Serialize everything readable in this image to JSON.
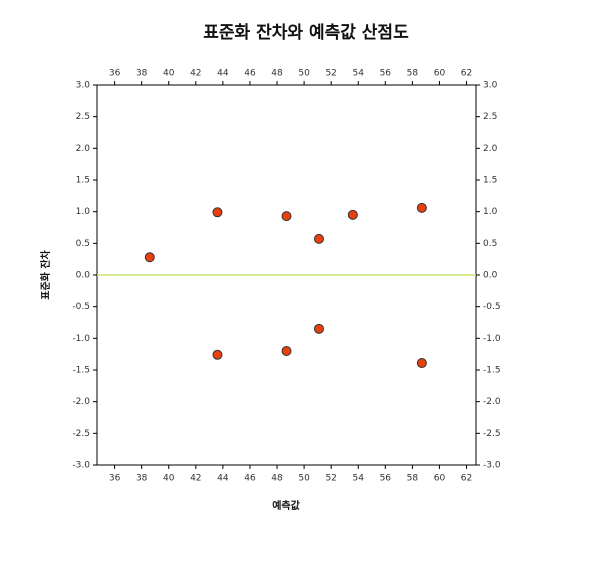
{
  "chart_data": {
    "type": "scatter",
    "title": "표준화 잔차와 예측값 산점도",
    "x_label": "예측값",
    "y_label": "표준화 잔차",
    "series": [
      {
        "color": "#e8400c",
        "x": [
          38.6,
          43.6,
          43.6,
          48.7,
          48.7,
          51.1,
          51.1,
          53.6,
          58.7,
          58.7
        ],
        "values": [
          0.28,
          0.99,
          -1.26,
          0.93,
          -1.2,
          0.57,
          -0.85,
          0.95,
          1.06,
          -1.39
        ]
      }
    ],
    "reference_line": {
      "value": 0,
      "color": "#c8e66e"
    },
    "xlim": [
      34.7,
      62.7
    ],
    "xticks": [
      36,
      38,
      40,
      42,
      44,
      46,
      48,
      50,
      52,
      54,
      56,
      58,
      60,
      62
    ],
    "ylim": [
      -3,
      3
    ],
    "yticks": [
      {
        "value": -3,
        "label": "-3.0"
      },
      -2.5,
      {
        "value": -2,
        "label": "-2.0"
      },
      -1.5,
      {
        "value": -1,
        "label": "-1.0"
      },
      -0.5,
      {
        "value": 0,
        "label": "0.0"
      },
      0.5,
      {
        "value": 1,
        "label": "1.0"
      },
      1.5,
      {
        "value": 2,
        "label": "2.0"
      },
      2.5,
      {
        "value": 3,
        "label": "3.0"
      }
    ]
  }
}
